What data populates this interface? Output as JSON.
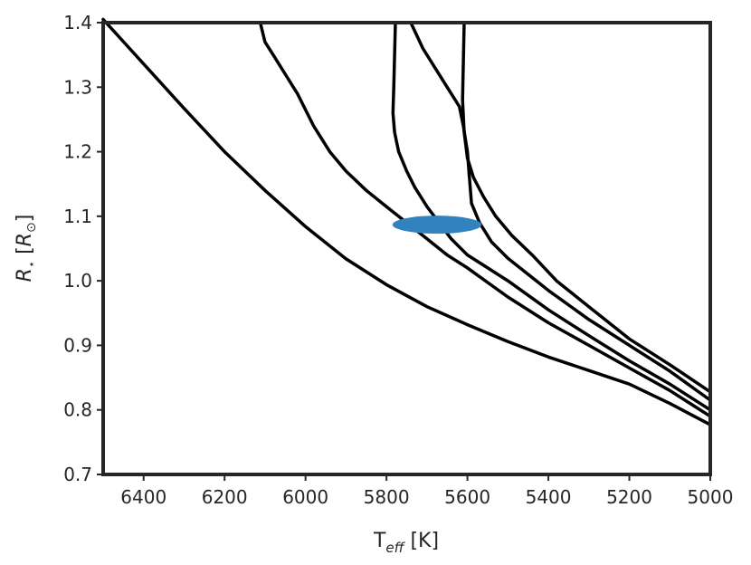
{
  "chart_data": {
    "type": "line",
    "title": "",
    "xlabel": "T_eff [K]",
    "xlabel_parts": {
      "main": "T",
      "sub": "eff",
      "unit": " [K]"
    },
    "ylabel": "R_⋆ [R_⊙]",
    "ylabel_parts": {
      "main": "R",
      "sub": "⋆",
      "unit_open": " [",
      "unit_main": "R",
      "unit_sub": "⊙",
      "unit_close": "]"
    },
    "xlim": [
      6500,
      5000
    ],
    "ylim": [
      0.7,
      1.4
    ],
    "x_reversed": true,
    "grid": false,
    "xticks": [
      "6400",
      "6200",
      "6000",
      "5800",
      "5600",
      "5400",
      "5200",
      "5000"
    ],
    "yticks": [
      "0.7",
      "0.8",
      "0.9",
      "1.0",
      "1.1",
      "1.2",
      "1.3",
      "1.4"
    ],
    "line_color": "#000000",
    "series": [
      {
        "x": [
          6500,
          6400,
          6300,
          6200,
          6100,
          6000,
          5900,
          5800,
          5700,
          5600,
          5500,
          5400,
          5300,
          5200,
          5100,
          5000
        ],
        "y": [
          1.405,
          1.336,
          1.267,
          1.2,
          1.14,
          1.084,
          1.034,
          0.994,
          0.96,
          0.932,
          0.906,
          0.882,
          0.861,
          0.84,
          0.81,
          0.777
        ]
      },
      {
        "x": [
          6112,
          6100,
          6080,
          6050,
          6020,
          5980,
          5940,
          5900,
          5850,
          5800,
          5750,
          5700,
          5650,
          5600,
          5500,
          5400,
          5300,
          5200,
          5100,
          5000
        ],
        "y": [
          1.4,
          1.37,
          1.35,
          1.32,
          1.29,
          1.24,
          1.2,
          1.17,
          1.14,
          1.115,
          1.09,
          1.065,
          1.04,
          1.02,
          0.975,
          0.935,
          0.9,
          0.865,
          0.83,
          0.79
        ]
      },
      {
        "x": [
          5778,
          5780,
          5782,
          5784,
          5780,
          5770,
          5750,
          5730,
          5700,
          5670,
          5640,
          5600,
          5550,
          5500,
          5400,
          5300,
          5200,
          5100,
          5000
        ],
        "y": [
          1.4,
          1.35,
          1.3,
          1.26,
          1.23,
          1.2,
          1.17,
          1.145,
          1.115,
          1.09,
          1.065,
          1.04,
          1.02,
          1.0,
          0.955,
          0.915,
          0.876,
          0.84,
          0.8
        ]
      },
      {
        "x": [
          5740,
          5710,
          5680,
          5650,
          5620,
          5610,
          5600,
          5595,
          5590,
          5570,
          5540,
          5500,
          5450,
          5400,
          5300,
          5200,
          5100,
          5000
        ],
        "y": [
          1.4,
          1.36,
          1.33,
          1.3,
          1.27,
          1.24,
          1.2,
          1.16,
          1.12,
          1.09,
          1.06,
          1.035,
          1.01,
          0.985,
          0.94,
          0.9,
          0.86,
          0.815
        ]
      },
      {
        "x": [
          5608,
          5610,
          5612,
          5608,
          5600,
          5585,
          5560,
          5530,
          5490,
          5440,
          5380,
          5300,
          5200,
          5100,
          5000
        ],
        "y": [
          1.4,
          1.34,
          1.28,
          1.23,
          1.19,
          1.16,
          1.13,
          1.1,
          1.07,
          1.04,
          1.0,
          0.96,
          0.91,
          0.87,
          0.828
        ]
      }
    ],
    "annotations": [
      {
        "type": "ellipse",
        "cx": 5675,
        "cy": 1.087,
        "rx": 110,
        "ry": 0.014,
        "color": "#3182bd"
      }
    ]
  }
}
